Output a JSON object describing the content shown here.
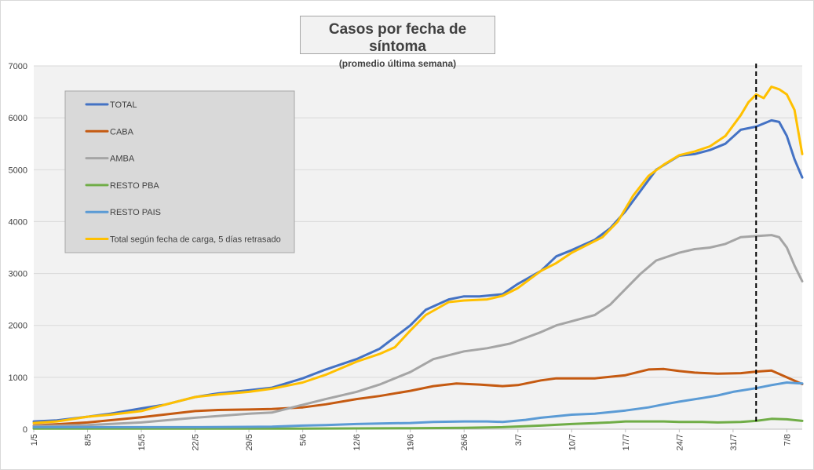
{
  "chart_data": {
    "type": "line",
    "title": "Casos por fecha de síntoma",
    "subtitle": "(promedio última semana)",
    "xlabel": "",
    "ylabel": "",
    "ylim": [
      0,
      7000
    ],
    "yticks": [
      0,
      1000,
      2000,
      3000,
      4000,
      5000,
      6000,
      7000
    ],
    "xlim": [
      0,
      100
    ],
    "x_start_label": "1/5",
    "x_tick_labels": [
      "1/5",
      "8/5",
      "15/5",
      "22/5",
      "29/5",
      "5/6",
      "12/6",
      "19/6",
      "26/6",
      "3/7",
      "10/7",
      "17/7",
      "24/7",
      "31/7",
      "7/8"
    ],
    "x_tick_days": [
      0,
      7,
      14,
      21,
      28,
      35,
      42,
      49,
      56,
      63,
      70,
      77,
      84,
      91,
      98
    ],
    "vertical_marker_day": 94,
    "grid": "horizontal",
    "legend_position": "top-left",
    "series": [
      {
        "name": "TOTAL",
        "color": "#4472c4",
        "points": [
          [
            0,
            150
          ],
          [
            3,
            170
          ],
          [
            7,
            240
          ],
          [
            10,
            300
          ],
          [
            14,
            400
          ],
          [
            17,
            470
          ],
          [
            21,
            620
          ],
          [
            24,
            690
          ],
          [
            28,
            750
          ],
          [
            31,
            800
          ],
          [
            35,
            980
          ],
          [
            38,
            1150
          ],
          [
            42,
            1350
          ],
          [
            45,
            1550
          ],
          [
            49,
            2000
          ],
          [
            51,
            2300
          ],
          [
            54,
            2500
          ],
          [
            56,
            2560
          ],
          [
            58,
            2560
          ],
          [
            61,
            2600
          ],
          [
            63,
            2800
          ],
          [
            66,
            3050
          ],
          [
            68,
            3330
          ],
          [
            70,
            3450
          ],
          [
            73,
            3650
          ],
          [
            75,
            3870
          ],
          [
            77,
            4200
          ],
          [
            79,
            4600
          ],
          [
            81,
            5000
          ],
          [
            84,
            5270
          ],
          [
            86,
            5300
          ],
          [
            88,
            5380
          ],
          [
            90,
            5500
          ],
          [
            92,
            5770
          ],
          [
            94,
            5830
          ],
          [
            96,
            5950
          ],
          [
            97,
            5920
          ],
          [
            98,
            5650
          ],
          [
            99,
            5200
          ],
          [
            100,
            4850
          ]
        ]
      },
      {
        "name": "CABA",
        "color": "#c55a11",
        "points": [
          [
            0,
            70
          ],
          [
            7,
            130
          ],
          [
            14,
            230
          ],
          [
            21,
            350
          ],
          [
            24,
            370
          ],
          [
            28,
            380
          ],
          [
            31,
            390
          ],
          [
            35,
            420
          ],
          [
            38,
            480
          ],
          [
            42,
            580
          ],
          [
            45,
            640
          ],
          [
            49,
            740
          ],
          [
            52,
            830
          ],
          [
            55,
            880
          ],
          [
            58,
            860
          ],
          [
            61,
            830
          ],
          [
            63,
            850
          ],
          [
            66,
            940
          ],
          [
            68,
            980
          ],
          [
            70,
            980
          ],
          [
            73,
            980
          ],
          [
            77,
            1040
          ],
          [
            80,
            1150
          ],
          [
            82,
            1160
          ],
          [
            84,
            1120
          ],
          [
            86,
            1090
          ],
          [
            89,
            1070
          ],
          [
            92,
            1080
          ],
          [
            94,
            1110
          ],
          [
            96,
            1130
          ],
          [
            98,
            1000
          ],
          [
            100,
            870
          ]
        ]
      },
      {
        "name": "AMBA",
        "color": "#a5a5a5",
        "points": [
          [
            0,
            60
          ],
          [
            7,
            80
          ],
          [
            14,
            130
          ],
          [
            21,
            220
          ],
          [
            28,
            300
          ],
          [
            31,
            320
          ],
          [
            35,
            470
          ],
          [
            38,
            580
          ],
          [
            42,
            720
          ],
          [
            45,
            860
          ],
          [
            49,
            1100
          ],
          [
            52,
            1350
          ],
          [
            56,
            1500
          ],
          [
            59,
            1560
          ],
          [
            62,
            1650
          ],
          [
            66,
            1870
          ],
          [
            68,
            2000
          ],
          [
            70,
            2080
          ],
          [
            73,
            2200
          ],
          [
            75,
            2400
          ],
          [
            77,
            2700
          ],
          [
            79,
            3000
          ],
          [
            81,
            3250
          ],
          [
            84,
            3400
          ],
          [
            86,
            3470
          ],
          [
            88,
            3500
          ],
          [
            90,
            3570
          ],
          [
            92,
            3700
          ],
          [
            94,
            3720
          ],
          [
            96,
            3740
          ],
          [
            97,
            3700
          ],
          [
            98,
            3500
          ],
          [
            99,
            3150
          ],
          [
            100,
            2850
          ]
        ]
      },
      {
        "name": "RESTO PBA",
        "color": "#70ad47",
        "points": [
          [
            0,
            10
          ],
          [
            7,
            10
          ],
          [
            14,
            10
          ],
          [
            21,
            10
          ],
          [
            28,
            10
          ],
          [
            35,
            10
          ],
          [
            42,
            15
          ],
          [
            49,
            20
          ],
          [
            56,
            25
          ],
          [
            61,
            40
          ],
          [
            66,
            70
          ],
          [
            70,
            100
          ],
          [
            75,
            130
          ],
          [
            77,
            150
          ],
          [
            82,
            150
          ],
          [
            84,
            140
          ],
          [
            87,
            140
          ],
          [
            89,
            130
          ],
          [
            92,
            140
          ],
          [
            94,
            160
          ],
          [
            96,
            200
          ],
          [
            98,
            190
          ],
          [
            100,
            160
          ]
        ]
      },
      {
        "name": "RESTO PAIS",
        "color": "#5b9bd5",
        "points": [
          [
            0,
            40
          ],
          [
            7,
            40
          ],
          [
            14,
            40
          ],
          [
            21,
            40
          ],
          [
            28,
            45
          ],
          [
            31,
            50
          ],
          [
            35,
            70
          ],
          [
            38,
            80
          ],
          [
            42,
            100
          ],
          [
            45,
            110
          ],
          [
            49,
            120
          ],
          [
            52,
            140
          ],
          [
            56,
            150
          ],
          [
            59,
            150
          ],
          [
            61,
            140
          ],
          [
            64,
            180
          ],
          [
            66,
            220
          ],
          [
            68,
            250
          ],
          [
            70,
            280
          ],
          [
            73,
            300
          ],
          [
            75,
            330
          ],
          [
            77,
            360
          ],
          [
            80,
            420
          ],
          [
            82,
            480
          ],
          [
            84,
            530
          ],
          [
            87,
            600
          ],
          [
            89,
            650
          ],
          [
            91,
            720
          ],
          [
            94,
            790
          ],
          [
            96,
            850
          ],
          [
            98,
            900
          ],
          [
            100,
            880
          ]
        ]
      },
      {
        "name": "Total según fecha de carga, 5 días retrasado",
        "color": "#ffc000",
        "points": [
          [
            0,
            120
          ],
          [
            3,
            150
          ],
          [
            7,
            240
          ],
          [
            10,
            280
          ],
          [
            14,
            350
          ],
          [
            17,
            470
          ],
          [
            21,
            620
          ],
          [
            24,
            670
          ],
          [
            28,
            720
          ],
          [
            31,
            780
          ],
          [
            35,
            900
          ],
          [
            38,
            1050
          ],
          [
            42,
            1300
          ],
          [
            45,
            1450
          ],
          [
            47,
            1580
          ],
          [
            49,
            1900
          ],
          [
            51,
            2200
          ],
          [
            54,
            2450
          ],
          [
            56,
            2480
          ],
          [
            59,
            2500
          ],
          [
            61,
            2570
          ],
          [
            63,
            2720
          ],
          [
            66,
            3050
          ],
          [
            68,
            3200
          ],
          [
            70,
            3400
          ],
          [
            72,
            3550
          ],
          [
            74,
            3700
          ],
          [
            76,
            4000
          ],
          [
            78,
            4500
          ],
          [
            80,
            4880
          ],
          [
            82,
            5100
          ],
          [
            84,
            5280
          ],
          [
            86,
            5350
          ],
          [
            88,
            5450
          ],
          [
            90,
            5650
          ],
          [
            92,
            6050
          ],
          [
            93,
            6300
          ],
          [
            94,
            6450
          ],
          [
            95,
            6380
          ],
          [
            96,
            6600
          ],
          [
            97,
            6550
          ],
          [
            98,
            6450
          ],
          [
            99,
            6150
          ],
          [
            100,
            5300
          ]
        ]
      }
    ]
  }
}
